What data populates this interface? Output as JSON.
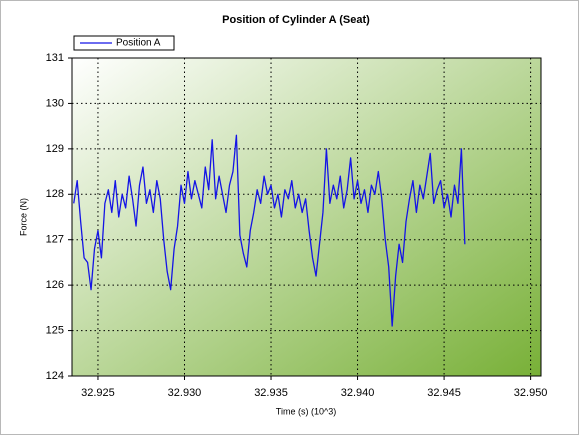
{
  "chart_data": {
    "type": "line",
    "title": "Position of Cylinder A (Seat)",
    "x_label": "Time (s) (10^3)",
    "y_label": "Force (N)",
    "xlim": [
      32.9235,
      32.9506
    ],
    "ylim": [
      124,
      131
    ],
    "xticks": [
      32.925,
      {
        "value": 32.93,
        "label": "32.930"
      },
      32.935,
      {
        "value": 32.94,
        "label": "32.940"
      },
      32.945,
      {
        "value": 32.95,
        "label": "32.950"
      }
    ],
    "yticks": [
      124,
      125,
      126,
      127,
      128,
      129,
      130,
      131
    ],
    "grid": true,
    "x": [
      32.9236,
      32.9238,
      32.924,
      32.9242,
      32.9244,
      32.9246,
      32.9248,
      32.925,
      32.9252,
      32.9254,
      32.9256,
      32.9258,
      32.926,
      32.9262,
      32.9264,
      32.9266,
      32.9268,
      32.927,
      32.9272,
      32.9274,
      32.9276,
      32.9278,
      32.928,
      32.9282,
      32.9284,
      32.9286,
      32.9288,
      32.929,
      32.9292,
      32.9294,
      32.9296,
      32.9298,
      32.93,
      32.9302,
      32.9304,
      32.9306,
      32.9308,
      32.931,
      32.9312,
      32.9314,
      32.9316,
      32.9318,
      32.932,
      32.9322,
      32.9324,
      32.9326,
      32.9328,
      32.933,
      32.9332,
      32.9334,
      32.9336,
      32.9338,
      32.934,
      32.9342,
      32.9344,
      32.9346,
      32.9348,
      32.935,
      32.9352,
      32.9354,
      32.9356,
      32.9358,
      32.936,
      32.9362,
      32.9364,
      32.9366,
      32.9368,
      32.937,
      32.9372,
      32.9374,
      32.9376,
      32.9378,
      32.938,
      32.9382,
      32.9384,
      32.9386,
      32.9388,
      32.939,
      32.9392,
      32.9394,
      32.9396,
      32.9398,
      32.94,
      32.9402,
      32.9404,
      32.9406,
      32.9408,
      32.941,
      32.9412,
      32.9414,
      32.9416,
      32.9418,
      32.942,
      32.9422,
      32.9424,
      32.9426,
      32.9428,
      32.943,
      32.9432,
      32.9434,
      32.9436,
      32.9438,
      32.944,
      32.9442,
      32.9444,
      32.9446,
      32.9448,
      32.945,
      32.9452,
      32.9454,
      32.9456,
      32.9458,
      32.946,
      32.9462
    ],
    "series": [
      {
        "name": "Position A",
        "color": "#1414e6",
        "values": [
          127.8,
          128.3,
          127.4,
          126.6,
          126.5,
          125.9,
          126.8,
          127.2,
          126.6,
          127.8,
          128.1,
          127.6,
          128.3,
          127.5,
          128.0,
          127.7,
          128.4,
          127.9,
          127.3,
          128.2,
          128.6,
          127.8,
          128.1,
          127.6,
          128.3,
          127.9,
          127.0,
          126.3,
          125.9,
          126.8,
          127.3,
          128.2,
          127.8,
          128.5,
          127.9,
          128.3,
          128.0,
          127.7,
          128.6,
          128.1,
          129.2,
          127.9,
          128.4,
          128.0,
          127.6,
          128.2,
          128.5,
          129.3,
          127.1,
          126.7,
          126.4,
          127.2,
          127.6,
          128.1,
          127.8,
          128.4,
          128.0,
          128.2,
          127.7,
          128.0,
          127.5,
          128.1,
          127.9,
          128.3,
          127.7,
          128.0,
          127.6,
          127.9,
          127.2,
          126.6,
          126.2,
          126.9,
          127.6,
          129.0,
          127.8,
          128.2,
          127.9,
          128.4,
          127.7,
          128.1,
          128.8,
          127.9,
          128.3,
          127.8,
          128.1,
          127.6,
          128.2,
          128.0,
          128.5,
          127.9,
          127.0,
          126.4,
          125.1,
          126.2,
          126.9,
          126.5,
          127.4,
          127.9,
          128.3,
          127.6,
          128.2,
          127.9,
          128.4,
          128.9,
          127.8,
          128.1,
          128.3,
          127.7,
          128.0,
          127.5,
          128.2,
          127.8,
          129.0,
          126.9
        ]
      }
    ]
  }
}
